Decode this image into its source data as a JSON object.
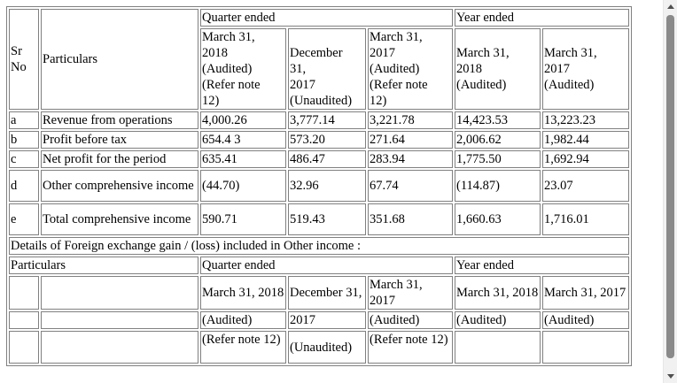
{
  "table1": {
    "header": {
      "sr_no": "Sr No",
      "particulars": "Particulars",
      "quarter_ended": "Quarter ended",
      "year_ended": "Year ended",
      "col_q1": [
        "March 31,",
        "2018",
        "(Audited)",
        "(Refer note",
        "12)"
      ],
      "col_q2": [
        "December",
        "31,",
        "2017",
        "(Unaudited)"
      ],
      "col_q3": [
        "March 31,",
        "2017",
        "(Audited)",
        "(Refer note",
        "12)"
      ],
      "col_y1": [
        "March 31,",
        "2018",
        "(Audited)"
      ],
      "col_y2": [
        "March 31,",
        "2017",
        "(Audited)"
      ]
    },
    "rows": [
      {
        "sr": "a",
        "label": "Revenue from operations",
        "values": [
          "4,000.26",
          "3,777.14",
          "3,221.78",
          "14,423.53",
          "13,223.23"
        ]
      },
      {
        "sr": "b",
        "label": "Profit before tax",
        "values": [
          "654.4 3",
          "573.20",
          "271.64",
          "2,006.62",
          "1,982.44"
        ]
      },
      {
        "sr": "c",
        "label": "Net profit for the period",
        "values": [
          "635.41",
          "486.47",
          "283.94",
          "1,775.50",
          "1,692.94"
        ]
      },
      {
        "sr": "d",
        "label": "Other comprehensive income",
        "values": [
          "(44.70)",
          "32.96",
          "67.74",
          "(114.87)",
          "23.07"
        ]
      },
      {
        "sr": "e",
        "label": "Total comprehensive income",
        "values": [
          "590.71",
          "519.43",
          "351.68",
          "1,660.63",
          "1,716.01"
        ]
      }
    ],
    "details_caption": "Details of Foreign exchange gain / (loss) included in Other income :"
  },
  "table2": {
    "particulars": "Particulars",
    "quarter_ended": "Quarter ended",
    "year_ended": "Year ended",
    "row_dates": [
      "March 31, 2018",
      "December 31,",
      "March 31, 2017",
      "March 31, 2018",
      "March 31, 2017"
    ],
    "row_status": [
      "(Audited)",
      "2017",
      "(Audited)",
      "(Audited)",
      "(Audited)"
    ],
    "row_note": [
      "(Refer note 12)",
      "(Unaudited)",
      "(Refer note 12)",
      "",
      ""
    ]
  }
}
